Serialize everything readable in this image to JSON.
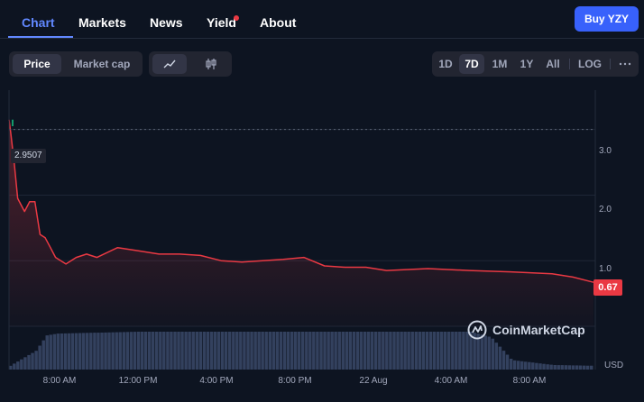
{
  "nav": {
    "tabs": [
      {
        "label": "Chart"
      },
      {
        "label": "Markets"
      },
      {
        "label": "News"
      },
      {
        "label": "Yield"
      },
      {
        "label": "About"
      }
    ],
    "buy_label": "Buy YZY",
    "accent": "#6188ff",
    "buy_color": "#3861fb"
  },
  "toolbar": {
    "metric_tabs": [
      "Price",
      "Market cap"
    ],
    "active_metric": "Price",
    "chart_type_icons": [
      "line-chart-icon",
      "candlestick-icon"
    ],
    "ranges": [
      "1D",
      "7D",
      "1M",
      "1Y",
      "All"
    ],
    "active_range": "7D",
    "log_label": "LOG",
    "more_icon": "more-icon"
  },
  "chart_data": {
    "type": "line",
    "y_axis_ticks": [
      "3.0",
      "2.0",
      "1.0"
    ],
    "ylim": [
      0,
      3.6
    ],
    "x_axis_ticks": [
      "8:00 AM",
      "12:00 PM",
      "4:00 PM",
      "8:00 PM",
      "22 Aug",
      "4:00 AM",
      "8:00 AM"
    ],
    "start_price_label": "2.9507",
    "current_price_label": "0.67",
    "currency_label": "USD",
    "watermark": "CoinMarketCap",
    "line_color": "#ea3943",
    "series": [
      {
        "x": [
          "21 Aug 5:45 AM",
          "21 Aug 5:50 AM",
          "21 Aug 6:00 AM",
          "21 Aug 6:10 AM",
          "21 Aug 6:20 AM",
          "21 Aug 6:30 AM",
          "21 Aug 6:45 AM",
          "21 Aug 7:00 AM",
          "21 Aug 7:15 AM",
          "21 Aug 7:30 AM",
          "21 Aug 7:45 AM",
          "21 Aug 8:00 AM",
          "21 Aug 8:30 AM",
          "21 Aug 9:00 AM",
          "21 Aug 9:30 AM",
          "21 Aug 10:00 AM",
          "21 Aug 11:00 AM",
          "21 Aug 12:00 PM",
          "21 Aug 1:00 PM",
          "21 Aug 2:00 PM",
          "21 Aug 3:00 PM",
          "21 Aug 4:00 PM",
          "21 Aug 5:00 PM",
          "21 Aug 6:00 PM",
          "21 Aug 7:00 PM",
          "21 Aug 8:00 PM",
          "21 Aug 9:00 PM",
          "21 Aug 10:00 PM",
          "21 Aug 11:00 PM",
          "22 Aug 12:00 AM",
          "22 Aug 2:00 AM",
          "22 Aug 4:00 AM",
          "22 Aug 6:00 AM",
          "22 Aug 8:00 AM",
          "22 Aug 9:00 AM",
          "22 Aug 10:00 AM"
        ],
        "values": [
          3.15,
          2.95,
          2.5,
          1.95,
          1.85,
          1.75,
          1.9,
          1.9,
          1.4,
          1.35,
          1.2,
          1.05,
          0.95,
          1.05,
          1.1,
          1.05,
          1.2,
          1.15,
          1.1,
          1.1,
          1.08,
          1.0,
          0.98,
          1.0,
          1.02,
          1.05,
          0.92,
          0.9,
          0.9,
          0.85,
          0.88,
          0.85,
          0.83,
          0.8,
          0.75,
          0.67
        ]
      }
    ],
    "volume_series": [
      {
        "x": [
          "21 Aug 5:45 AM",
          "21 Aug 7:00 AM",
          "21 Aug 7:30 AM",
          "21 Aug 8:00 AM",
          "21 Aug 12:00 PM",
          "21 Aug 4:00 PM",
          "21 Aug 8:00 PM",
          "22 Aug 12:00 AM",
          "22 Aug 4:00 AM",
          "22 Aug 5:00 AM",
          "22 Aug 6:00 AM",
          "22 Aug 8:00 AM",
          "22 Aug 10:00 AM"
        ],
        "values": [
          0.1,
          0.5,
          0.9,
          0.95,
          1.0,
          1.0,
          1.0,
          1.0,
          1.0,
          0.85,
          0.25,
          0.12,
          0.1
        ]
      }
    ]
  }
}
